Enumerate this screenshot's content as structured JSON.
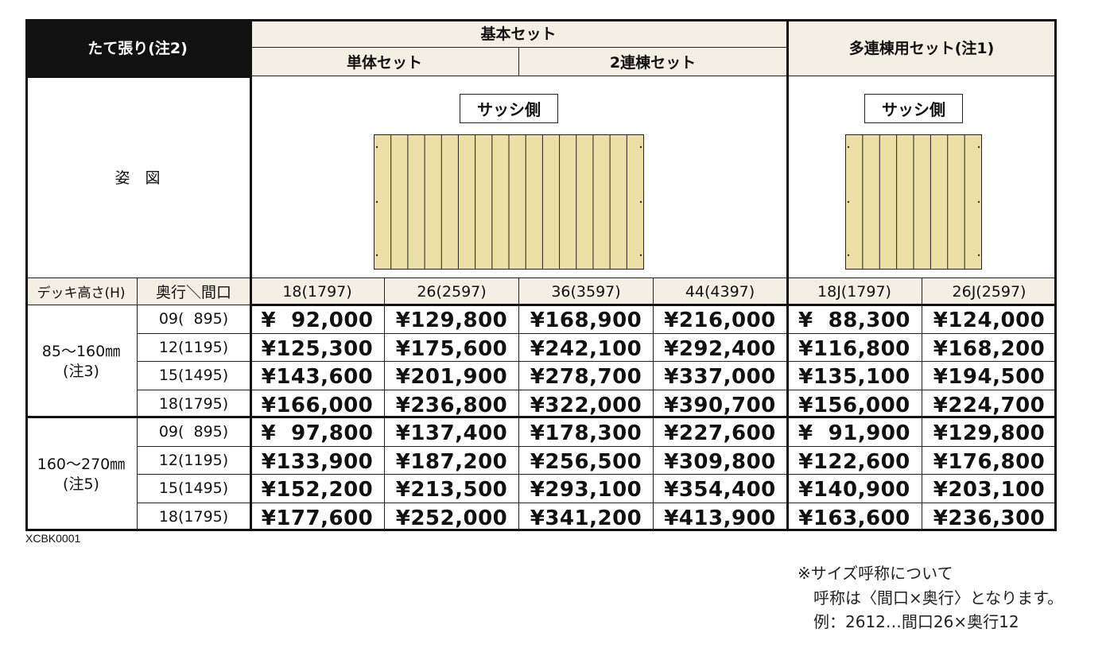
{
  "header": {
    "title": "たて張り(注2)",
    "basic_set": "基本セット",
    "single_set": "単体セット",
    "double_set": "2連棟セット",
    "multi_set": "多連棟用セット(注1)"
  },
  "figure": {
    "row_label": "姿　図",
    "sash_label_basic": "サッシ側",
    "sash_label_multi": "サッシ側"
  },
  "subheader": {
    "deck_height": "デッキ高さ(H)",
    "depth_width": "奥行＼間口",
    "columns": [
      "18(1797)",
      "26(2597)",
      "36(3597)",
      "44(4397)",
      "18J(1797)",
      "26J(2597)"
    ]
  },
  "groups": [
    {
      "height_label": "85～160㎜",
      "note": "(注3)",
      "rows": [
        {
          "depth": "09(  895)",
          "prices": [
            "¥  92,000",
            "¥129,800",
            "¥168,900",
            "¥216,000",
            "¥  88,300",
            "¥124,000"
          ]
        },
        {
          "depth": "12(1195)",
          "prices": [
            "¥125,300",
            "¥175,600",
            "¥242,100",
            "¥292,400",
            "¥116,800",
            "¥168,200"
          ]
        },
        {
          "depth": "15(1495)",
          "prices": [
            "¥143,600",
            "¥201,900",
            "¥278,700",
            "¥337,000",
            "¥135,100",
            "¥194,500"
          ]
        },
        {
          "depth": "18(1795)",
          "prices": [
            "¥166,000",
            "¥236,800",
            "¥322,000",
            "¥390,700",
            "¥156,000",
            "¥224,700"
          ]
        }
      ]
    },
    {
      "height_label": "160～270㎜",
      "note": "(注5)",
      "rows": [
        {
          "depth": "09(  895)",
          "prices": [
            "¥  97,800",
            "¥137,400",
            "¥178,300",
            "¥227,600",
            "¥  91,900",
            "¥129,800"
          ]
        },
        {
          "depth": "12(1195)",
          "prices": [
            "¥133,900",
            "¥187,200",
            "¥256,500",
            "¥309,800",
            "¥122,600",
            "¥176,800"
          ]
        },
        {
          "depth": "15(1495)",
          "prices": [
            "¥152,200",
            "¥213,500",
            "¥293,100",
            "¥354,400",
            "¥140,900",
            "¥203,100"
          ]
        },
        {
          "depth": "18(1795)",
          "prices": [
            "¥177,600",
            "¥252,000",
            "¥341,200",
            "¥413,900",
            "¥163,600",
            "¥236,300"
          ]
        }
      ]
    }
  ],
  "code": "XCBK0001",
  "notes": {
    "line1": "※サイズ呼称について",
    "line2": "呼称は〈間口×奥行〉となります。",
    "line3": "例：2612…間口26×奥行12"
  },
  "colors": {
    "deck_fill": "#ece0a6",
    "header_bg": "#f3efe5",
    "title_bg": "#111111"
  }
}
